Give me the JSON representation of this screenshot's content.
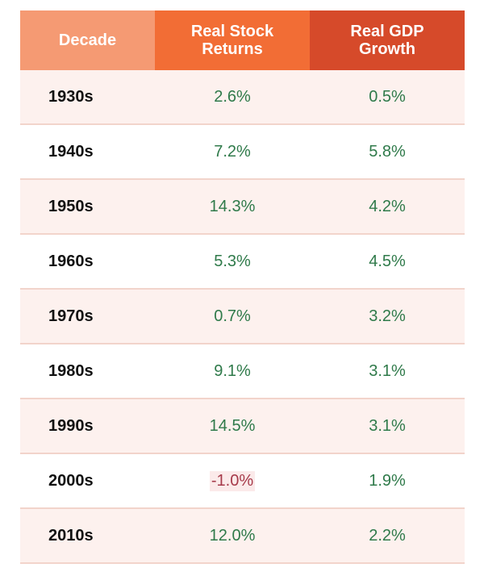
{
  "chart_data": {
    "type": "table",
    "columns": [
      "Decade",
      "Real Stock\nReturns",
      "Real GDP\nGrowth"
    ],
    "rows": [
      {
        "decade": "1930s",
        "stock": "2.6%",
        "gdp": "0.5%"
      },
      {
        "decade": "1940s",
        "stock": "7.2%",
        "gdp": "5.8%"
      },
      {
        "decade": "1950s",
        "stock": "14.3%",
        "gdp": "4.2%"
      },
      {
        "decade": "1960s",
        "stock": "5.3%",
        "gdp": "4.5%"
      },
      {
        "decade": "1970s",
        "stock": "0.7%",
        "gdp": "3.2%"
      },
      {
        "decade": "1980s",
        "stock": "9.1%",
        "gdp": "3.1%"
      },
      {
        "decade": "1990s",
        "stock": "14.5%",
        "gdp": "3.1%"
      },
      {
        "decade": "2000s",
        "stock": "-1.0%",
        "gdp": "1.9%"
      },
      {
        "decade": "2010s",
        "stock": "12.0%",
        "gdp": "2.2%"
      }
    ]
  },
  "colors": {
    "header_decade": "#f59a73",
    "header_stock": "#f26d35",
    "header_gdp": "#d64a2a",
    "positive_text": "#2f7a4a",
    "negative_text": "#a63a4a",
    "stripe": "#fdf1ee",
    "divider": "#f2d4cb"
  }
}
